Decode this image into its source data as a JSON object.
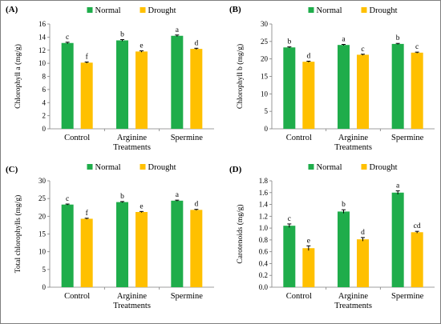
{
  "figure": {
    "colors": {
      "normal": "#1FAD4B",
      "drought": "#FFC000",
      "axis": "#7f7f7f",
      "error": "#000000"
    }
  },
  "chart_data": [
    {
      "type": "bar",
      "panel_label": "(A)",
      "title": "",
      "xlabel": "Treatments",
      "ylabel": "Chlorophyll a (mg/g)",
      "ylim": [
        0,
        16
      ],
      "yticks": [
        "0",
        "2",
        "4",
        "6",
        "8",
        "10",
        "12",
        "14",
        "16"
      ],
      "legend": [
        "Normal",
        "Drought"
      ],
      "legend_position": "top",
      "grid": false,
      "categories": [
        "Control",
        "Arginine",
        "Spermine"
      ],
      "series": [
        {
          "name": "Normal",
          "values": [
            13.1,
            13.5,
            14.2
          ],
          "errors": [
            0.12,
            0.12,
            0.12
          ],
          "letters": [
            "c",
            "b",
            "a"
          ]
        },
        {
          "name": "Drought",
          "values": [
            10.1,
            11.8,
            12.2
          ],
          "errors": [
            0.1,
            0.1,
            0.1
          ],
          "letters": [
            "f",
            "e",
            "d"
          ]
        }
      ]
    },
    {
      "type": "bar",
      "panel_label": "(B)",
      "title": "",
      "xlabel": "Treatments",
      "ylabel": "Chlorophyll b (mg/g)",
      "ylim": [
        0,
        30
      ],
      "yticks": [
        "0",
        "5",
        "10",
        "15",
        "20",
        "25",
        "30"
      ],
      "legend": [
        "Normal",
        "Drought"
      ],
      "legend_position": "top",
      "grid": false,
      "categories": [
        "Control",
        "Arginine",
        "Spermine"
      ],
      "series": [
        {
          "name": "Normal",
          "values": [
            23.3,
            24.0,
            24.3
          ],
          "errors": [
            0.15,
            0.15,
            0.15
          ],
          "letters": [
            "b",
            "a",
            "b"
          ]
        },
        {
          "name": "Drought",
          "values": [
            19.2,
            21.2,
            21.8
          ],
          "errors": [
            0.15,
            0.15,
            0.15
          ],
          "letters": [
            "d",
            "c",
            "c"
          ]
        }
      ]
    },
    {
      "type": "bar",
      "panel_label": "(C)",
      "title": "",
      "xlabel": "Treatments",
      "ylabel": "Total chlorophylls (mg/g)",
      "ylim": [
        0,
        30
      ],
      "yticks": [
        "0",
        "5",
        "10",
        "15",
        "20",
        "25",
        "30"
      ],
      "legend": [
        "Normal",
        "Drought"
      ],
      "legend_position": "top",
      "grid": false,
      "categories": [
        "Control",
        "Arginine",
        "Spermine"
      ],
      "series": [
        {
          "name": "Normal",
          "values": [
            23.3,
            24.0,
            24.4
          ],
          "errors": [
            0.15,
            0.15,
            0.15
          ],
          "letters": [
            "c",
            "b",
            "a"
          ]
        },
        {
          "name": "Drought",
          "values": [
            19.3,
            21.2,
            21.8
          ],
          "errors": [
            0.15,
            0.15,
            0.15
          ],
          "letters": [
            "f",
            "e",
            "d"
          ]
        }
      ]
    },
    {
      "type": "bar",
      "panel_label": "(D)",
      "title": "",
      "xlabel": "Treatments",
      "ylabel": "Carotenoids (mg/g)",
      "ylim": [
        0,
        1.8
      ],
      "yticks": [
        "0.0",
        "0.2",
        "0.4",
        "0.6",
        "0.8",
        "1.0",
        "1.2",
        "1.4",
        "1.6",
        "1.8"
      ],
      "legend": [
        "Normal",
        "Drought"
      ],
      "legend_position": "top",
      "grid": false,
      "categories": [
        "Control",
        "Arginine",
        "Spermine"
      ],
      "series": [
        {
          "name": "Normal",
          "values": [
            1.04,
            1.28,
            1.6
          ],
          "errors": [
            0.03,
            0.03,
            0.03
          ],
          "letters": [
            "c",
            "b",
            "a"
          ]
        },
        {
          "name": "Drought",
          "values": [
            0.66,
            0.81,
            0.93
          ],
          "errors": [
            0.04,
            0.03,
            0.015
          ],
          "letters": [
            "e",
            "d",
            "cd"
          ]
        }
      ]
    }
  ]
}
